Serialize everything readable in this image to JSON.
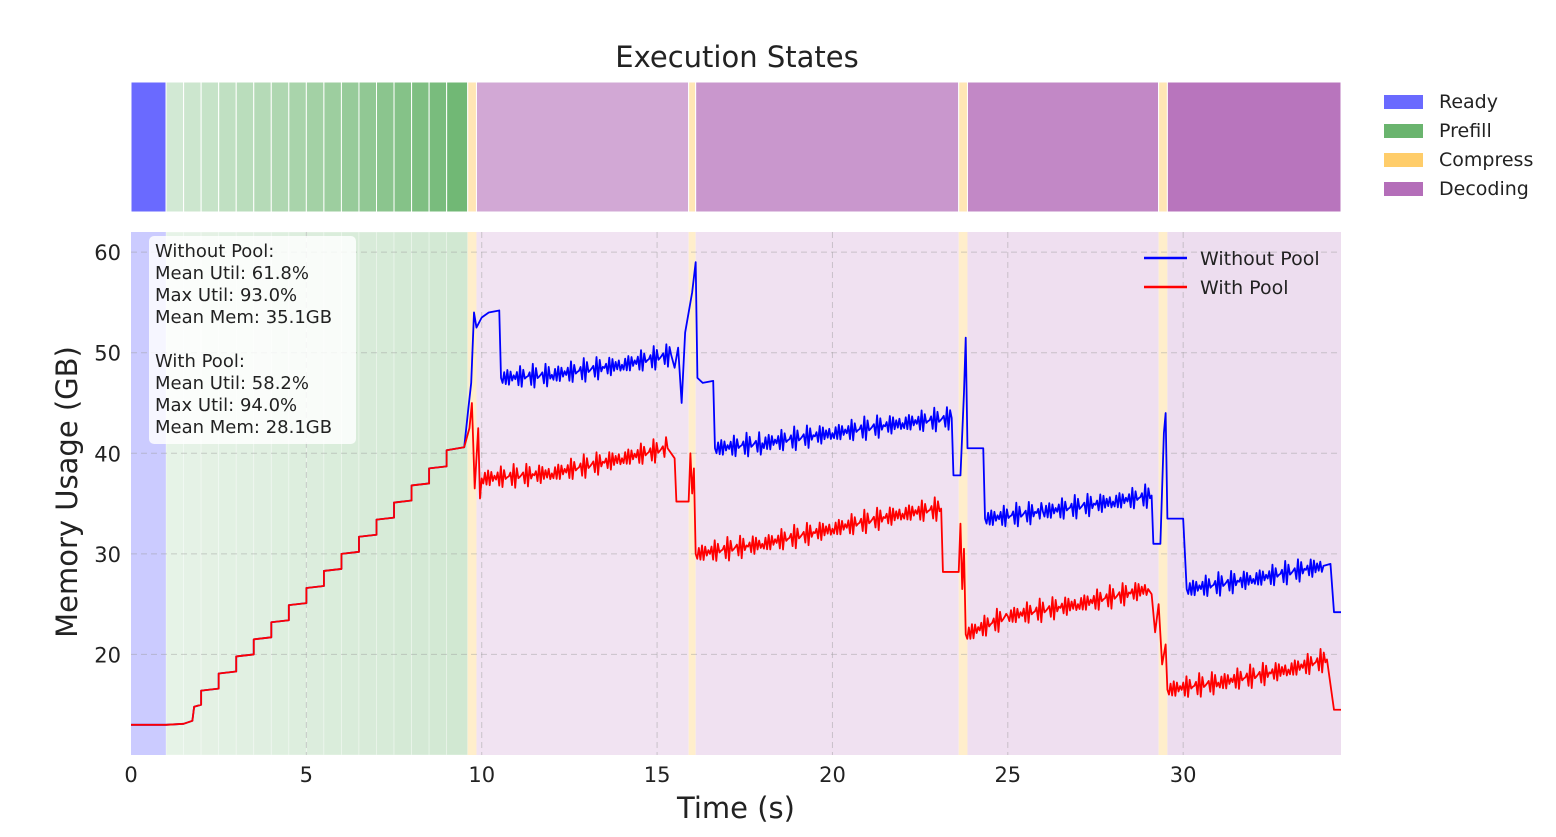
{
  "chart_data": [
    {
      "type": "timeline",
      "title": "Execution States",
      "legend": {
        "position": "right",
        "entries": [
          {
            "name": "Ready",
            "color": "#6a6aff"
          },
          {
            "name": "Prefill",
            "color": "#6ab46e"
          },
          {
            "name": "Compress",
            "color": "#ffcd6a"
          },
          {
            "name": "Decoding",
            "color": "#b46eb9"
          }
        ]
      },
      "xlim": [
        0,
        34.5
      ],
      "segments": [
        {
          "state": "Ready",
          "start": 0,
          "end": 1.0,
          "shade": 1.0
        },
        {
          "state": "Prefill",
          "start": 1.0,
          "end": 1.5,
          "shade": 0.3
        },
        {
          "state": "Prefill",
          "start": 1.5,
          "end": 2.0,
          "shade": 0.34
        },
        {
          "state": "Prefill",
          "start": 2.0,
          "end": 2.5,
          "shade": 0.38
        },
        {
          "state": "Prefill",
          "start": 2.5,
          "end": 3.0,
          "shade": 0.42
        },
        {
          "state": "Prefill",
          "start": 3.0,
          "end": 3.5,
          "shade": 0.46
        },
        {
          "state": "Prefill",
          "start": 3.5,
          "end": 4.0,
          "shade": 0.5
        },
        {
          "state": "Prefill",
          "start": 4.0,
          "end": 4.5,
          "shade": 0.54
        },
        {
          "state": "Prefill",
          "start": 4.5,
          "end": 5.0,
          "shade": 0.58
        },
        {
          "state": "Prefill",
          "start": 5.0,
          "end": 5.5,
          "shade": 0.62
        },
        {
          "state": "Prefill",
          "start": 5.5,
          "end": 6.0,
          "shade": 0.66
        },
        {
          "state": "Prefill",
          "start": 6.0,
          "end": 6.5,
          "shade": 0.7
        },
        {
          "state": "Prefill",
          "start": 6.5,
          "end": 7.0,
          "shade": 0.74
        },
        {
          "state": "Prefill",
          "start": 7.0,
          "end": 7.5,
          "shade": 0.78
        },
        {
          "state": "Prefill",
          "start": 7.5,
          "end": 8.0,
          "shade": 0.82
        },
        {
          "state": "Prefill",
          "start": 8.0,
          "end": 8.5,
          "shade": 0.86
        },
        {
          "state": "Prefill",
          "start": 8.5,
          "end": 9.0,
          "shade": 0.9
        },
        {
          "state": "Prefill",
          "start": 9.0,
          "end": 9.6,
          "shade": 0.95
        },
        {
          "state": "Compress",
          "start": 9.6,
          "end": 9.85,
          "shade": 0.5
        },
        {
          "state": "Decoding",
          "start": 9.85,
          "end": 15.9,
          "shade": 0.6
        },
        {
          "state": "Compress",
          "start": 15.9,
          "end": 16.1,
          "shade": 0.5
        },
        {
          "state": "Decoding",
          "start": 16.1,
          "end": 23.6,
          "shade": 0.72
        },
        {
          "state": "Compress",
          "start": 23.6,
          "end": 23.85,
          "shade": 0.5
        },
        {
          "state": "Decoding",
          "start": 23.85,
          "end": 29.3,
          "shade": 0.82
        },
        {
          "state": "Compress",
          "start": 29.3,
          "end": 29.55,
          "shade": 0.5
        },
        {
          "state": "Decoding",
          "start": 29.55,
          "end": 34.5,
          "shade": 0.95
        }
      ]
    },
    {
      "type": "line",
      "xlabel": "Time (s)",
      "ylabel": "Memory Usage (GB)",
      "xlim": [
        0,
        34.5
      ],
      "ylim": [
        10,
        62
      ],
      "xticks": [
        0,
        5,
        10,
        15,
        20,
        25,
        30
      ],
      "yticks": [
        20,
        30,
        40,
        50,
        60
      ],
      "grid": true,
      "legend": "top-right",
      "stats_text": {
        "without": [
          "Without Pool:",
          "Mean Util: 61.8%",
          "Max Util: 93.0%",
          "Mean Mem: 35.1GB"
        ],
        "with": [
          "With Pool:",
          "Mean Util: 58.2%",
          "Max Util: 94.0%",
          "Mean Mem: 28.1GB"
        ]
      },
      "series": [
        {
          "name": "Without Pool",
          "color": "#0000ff",
          "points": [
            [
              0,
              13.0
            ],
            [
              1.0,
              13.0
            ],
            [
              1.5,
              13.1
            ],
            [
              1.75,
              13.4
            ],
            [
              1.8,
              14.8
            ],
            [
              2.0,
              15.0
            ],
            [
              2.0,
              16.4
            ],
            [
              2.5,
              16.6
            ],
            [
              2.5,
              18.1
            ],
            [
              3.0,
              18.3
            ],
            [
              3.0,
              19.8
            ],
            [
              3.5,
              20.0
            ],
            [
              3.5,
              21.5
            ],
            [
              4.0,
              21.7
            ],
            [
              4.0,
              23.2
            ],
            [
              4.5,
              23.4
            ],
            [
              4.5,
              24.9
            ],
            [
              5.0,
              25.1
            ],
            [
              5.0,
              26.6
            ],
            [
              5.5,
              26.8
            ],
            [
              5.5,
              28.3
            ],
            [
              6.0,
              28.5
            ],
            [
              6.0,
              30.0
            ],
            [
              6.5,
              30.2
            ],
            [
              6.5,
              31.7
            ],
            [
              7.0,
              31.9
            ],
            [
              7.0,
              33.4
            ],
            [
              7.5,
              33.6
            ],
            [
              7.5,
              35.1
            ],
            [
              8.0,
              35.3
            ],
            [
              8.0,
              36.8
            ],
            [
              8.5,
              37.0
            ],
            [
              8.5,
              38.5
            ],
            [
              9.0,
              38.7
            ],
            [
              9.0,
              40.3
            ],
            [
              9.5,
              40.6
            ],
            [
              9.62,
              44.5
            ],
            [
              9.7,
              47.0
            ],
            [
              9.78,
              54.0
            ],
            [
              9.85,
              52.5
            ],
            [
              10.0,
              53.5
            ],
            [
              10.2,
              54.0
            ],
            [
              10.5,
              54.2
            ],
            [
              10.55,
              47.5
            ],
            [
              12.0,
              47.8
            ],
            [
              14.0,
              48.8
            ],
            [
              15.4,
              49.8
            ],
            [
              15.5,
              48.5
            ],
            [
              15.6,
              50.5
            ],
            [
              15.7,
              45.0
            ],
            [
              15.8,
              52.0
            ],
            [
              16.0,
              56.0
            ],
            [
              16.1,
              59.0
            ],
            [
              16.15,
              47.5
            ],
            [
              16.3,
              47.0
            ],
            [
              16.6,
              47.2
            ],
            [
              16.65,
              40.5
            ],
            [
              18.0,
              41.0
            ],
            [
              20.0,
              42.0
            ],
            [
              22.0,
              43.0
            ],
            [
              23.4,
              43.5
            ],
            [
              23.45,
              37.8
            ],
            [
              23.65,
              37.8
            ],
            [
              23.75,
              46.0
            ],
            [
              23.8,
              51.5
            ],
            [
              23.85,
              40.5
            ],
            [
              24.3,
              40.5
            ],
            [
              24.35,
              33.5
            ],
            [
              26.0,
              34.2
            ],
            [
              28.0,
              35.2
            ],
            [
              29.1,
              35.8
            ],
            [
              29.15,
              31.0
            ],
            [
              29.35,
              31.0
            ],
            [
              29.45,
              42.0
            ],
            [
              29.5,
              44.0
            ],
            [
              29.55,
              33.5
            ],
            [
              30.0,
              33.5
            ],
            [
              30.1,
              26.5
            ],
            [
              32.0,
              27.5
            ],
            [
              34.0,
              28.8
            ],
            [
              34.2,
              29.0
            ],
            [
              34.3,
              24.2
            ],
            [
              34.5,
              24.2
            ]
          ]
        },
        {
          "name": "With Pool",
          "color": "#ff0000",
          "points": [
            [
              0,
              13.0
            ],
            [
              1.0,
              13.0
            ],
            [
              1.5,
              13.1
            ],
            [
              1.75,
              13.4
            ],
            [
              1.8,
              14.8
            ],
            [
              2.0,
              15.0
            ],
            [
              2.0,
              16.4
            ],
            [
              2.5,
              16.6
            ],
            [
              2.5,
              18.1
            ],
            [
              3.0,
              18.3
            ],
            [
              3.0,
              19.8
            ],
            [
              3.5,
              20.0
            ],
            [
              3.5,
              21.5
            ],
            [
              4.0,
              21.7
            ],
            [
              4.0,
              23.2
            ],
            [
              4.5,
              23.4
            ],
            [
              4.5,
              24.9
            ],
            [
              5.0,
              25.1
            ],
            [
              5.0,
              26.6
            ],
            [
              5.5,
              26.8
            ],
            [
              5.5,
              28.3
            ],
            [
              6.0,
              28.5
            ],
            [
              6.0,
              30.0
            ],
            [
              6.5,
              30.2
            ],
            [
              6.5,
              31.7
            ],
            [
              7.0,
              31.9
            ],
            [
              7.0,
              33.4
            ],
            [
              7.5,
              33.6
            ],
            [
              7.5,
              35.1
            ],
            [
              8.0,
              35.3
            ],
            [
              8.0,
              36.8
            ],
            [
              8.5,
              37.0
            ],
            [
              8.5,
              38.5
            ],
            [
              9.0,
              38.7
            ],
            [
              9.0,
              40.3
            ],
            [
              9.5,
              40.6
            ],
            [
              9.65,
              42.5
            ],
            [
              9.72,
              45.0
            ],
            [
              9.8,
              36.5
            ],
            [
              9.9,
              42.5
            ],
            [
              9.95,
              35.5
            ],
            [
              10.0,
              37.5
            ],
            [
              12.0,
              38.0
            ],
            [
              14.0,
              39.5
            ],
            [
              15.3,
              40.5
            ],
            [
              15.5,
              39.5
            ],
            [
              15.55,
              35.2
            ],
            [
              15.9,
              35.2
            ],
            [
              15.95,
              40.0
            ],
            [
              16.0,
              36.0
            ],
            [
              16.05,
              38.5
            ],
            [
              16.1,
              30.0
            ],
            [
              18.0,
              31.0
            ],
            [
              20.0,
              32.5
            ],
            [
              22.0,
              34.0
            ],
            [
              23.1,
              34.5
            ],
            [
              23.15,
              28.2
            ],
            [
              23.6,
              28.2
            ],
            [
              23.65,
              33.0
            ],
            [
              23.7,
              26.5
            ],
            [
              23.75,
              30.5
            ],
            [
              23.8,
              22.0
            ],
            [
              25.0,
              23.8
            ],
            [
              27.0,
              25.0
            ],
            [
              29.0,
              26.5
            ],
            [
              29.1,
              26.0
            ],
            [
              29.2,
              22.2
            ],
            [
              29.3,
              25.0
            ],
            [
              29.4,
              19.0
            ],
            [
              29.5,
              21.0
            ],
            [
              29.55,
              16.5
            ],
            [
              31.0,
              17.2
            ],
            [
              33.0,
              18.5
            ],
            [
              34.1,
              19.5
            ],
            [
              34.3,
              14.5
            ],
            [
              34.5,
              14.5
            ]
          ]
        }
      ]
    }
  ]
}
